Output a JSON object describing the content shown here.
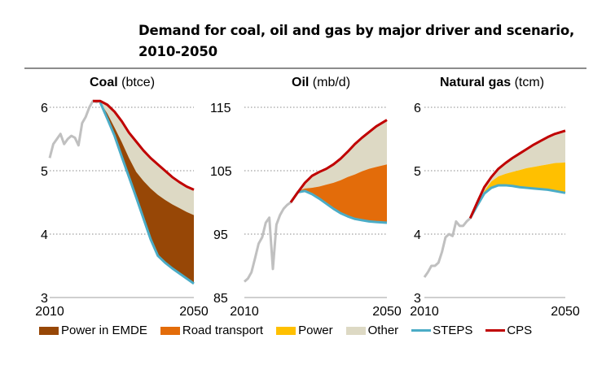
{
  "title_line1": "Demand for coal, oil and gas by major driver and scenario,",
  "title_line2": "2010-2050",
  "colors": {
    "history": "#c0c0c0",
    "power_emde": "#974706",
    "road_transport": "#e36c0a",
    "power": "#ffc000",
    "other": "#ddd9c4",
    "steps": "#4bacc6",
    "cps": "#c00000",
    "grid": "#888888",
    "axis": "#bfbfbf"
  },
  "legend": [
    {
      "label": "Power in EMDE",
      "type": "box",
      "color_key": "power_emde"
    },
    {
      "label": "Road transport",
      "type": "box",
      "color_key": "road_transport"
    },
    {
      "label": "Power",
      "type": "box",
      "color_key": "power"
    },
    {
      "label": "Other",
      "type": "box",
      "color_key": "other"
    },
    {
      "label": "STEPS",
      "type": "line",
      "color_key": "steps"
    },
    {
      "label": "CPS",
      "type": "line",
      "color_key": "cps"
    }
  ],
  "chart_data": [
    {
      "type": "area",
      "title_bold": "Coal",
      "title_unit": "(btce)",
      "xlim": [
        2010,
        2050
      ],
      "ylim": [
        3,
        6
      ],
      "yticks": [
        3,
        4,
        5,
        6
      ],
      "xtick_labels": [
        "2010",
        "2050"
      ],
      "grid": true,
      "history": {
        "x": [
          2010,
          2011,
          2012,
          2013,
          2014,
          2015,
          2016,
          2017,
          2018,
          2019,
          2020,
          2021,
          2022,
          2023,
          2024
        ],
        "y": [
          5.2,
          5.42,
          5.5,
          5.58,
          5.42,
          5.5,
          5.55,
          5.52,
          5.4,
          5.75,
          5.85,
          6.0,
          6.1,
          6.08,
          6.1
        ]
      },
      "steps": {
        "x": [
          2024,
          2026,
          2028,
          2030,
          2032,
          2034,
          2036,
          2038,
          2040,
          2042,
          2044,
          2046,
          2048,
          2050
        ],
        "y": [
          6.08,
          5.82,
          5.55,
          5.22,
          4.9,
          4.58,
          4.25,
          3.92,
          3.66,
          3.55,
          3.46,
          3.38,
          3.3,
          3.22
        ]
      },
      "cps": {
        "x": [
          2022,
          2024,
          2026,
          2028,
          2030,
          2032,
          2034,
          2036,
          2038,
          2040,
          2042,
          2044,
          2046,
          2048,
          2050
        ],
        "y": [
          6.1,
          6.1,
          6.04,
          5.93,
          5.78,
          5.6,
          5.46,
          5.32,
          5.2,
          5.1,
          5.0,
          4.9,
          4.82,
          4.75,
          4.7
        ]
      },
      "stacks": [
        {
          "name": "Power in EMDE",
          "color_key": "power_emde",
          "top": [
            6.08,
            5.9,
            5.68,
            5.45,
            5.2,
            4.98,
            4.84,
            4.72,
            4.62,
            4.54,
            4.47,
            4.41,
            4.35,
            4.3
          ]
        },
        {
          "name": "Other",
          "color_key": "other",
          "top": "cps"
        }
      ]
    },
    {
      "type": "area",
      "title_bold": "Oil",
      "title_unit": "(mb/d)",
      "xlim": [
        2010,
        2050
      ],
      "ylim": [
        85,
        115
      ],
      "yticks": [
        85,
        95,
        105,
        115
      ],
      "xtick_labels": [
        "2010",
        "2050"
      ],
      "grid": true,
      "history": {
        "x": [
          2010,
          2011,
          2012,
          2013,
          2014,
          2015,
          2016,
          2017,
          2018,
          2019,
          2020,
          2021,
          2022,
          2023
        ],
        "y": [
          87.5,
          88,
          89,
          91.2,
          93.5,
          94.5,
          96.8,
          97.6,
          89.5,
          96.5,
          98,
          99,
          99.6,
          100
        ]
      },
      "steps": {
        "x": [
          2023,
          2025,
          2027,
          2029,
          2031,
          2033,
          2035,
          2037,
          2039,
          2041,
          2043,
          2045,
          2047,
          2050
        ],
        "y": [
          100,
          101.6,
          101.8,
          101.3,
          100.6,
          99.8,
          99,
          98.3,
          97.8,
          97.4,
          97.2,
          97,
          96.9,
          96.8
        ]
      },
      "cps": {
        "x": [
          2023,
          2025,
          2027,
          2029,
          2031,
          2033,
          2035,
          2037,
          2039,
          2041,
          2043,
          2045,
          2047,
          2050
        ],
        "y": [
          100,
          101.6,
          103.1,
          104.2,
          104.8,
          105.3,
          106,
          106.9,
          108,
          109.2,
          110.2,
          111.1,
          112,
          113
        ]
      },
      "stacks": [
        {
          "name": "Road transport",
          "color_key": "road_transport",
          "top": [
            100,
            101.8,
            102.2,
            102.3,
            102.5,
            102.8,
            103.1,
            103.5,
            104,
            104.4,
            104.9,
            105.3,
            105.6,
            106
          ]
        },
        {
          "name": "Other",
          "color_key": "other",
          "top": "cps"
        }
      ]
    },
    {
      "type": "area",
      "title_bold": "Natural gas",
      "title_unit": "(tcm)",
      "xlim": [
        2010,
        2050
      ],
      "ylim": [
        3,
        6
      ],
      "yticks": [
        3,
        4,
        5,
        6
      ],
      "xtick_labels": [
        "2010",
        "2050"
      ],
      "grid": true,
      "history": {
        "x": [
          2010,
          2011,
          2012,
          2013,
          2014,
          2015,
          2016,
          2017,
          2018,
          2019,
          2020,
          2021,
          2022,
          2023
        ],
        "y": [
          3.32,
          3.4,
          3.5,
          3.5,
          3.55,
          3.72,
          3.95,
          4.0,
          3.97,
          4.2,
          4.13,
          4.13,
          4.2,
          4.25
        ]
      },
      "steps": {
        "x": [
          2023,
          2025,
          2027,
          2029,
          2031,
          2033,
          2035,
          2037,
          2039,
          2041,
          2043,
          2045,
          2047,
          2050
        ],
        "y": [
          4.25,
          4.45,
          4.64,
          4.73,
          4.77,
          4.77,
          4.76,
          4.74,
          4.73,
          4.72,
          4.71,
          4.7,
          4.68,
          4.65
        ]
      },
      "cps": {
        "x": [
          2023,
          2025,
          2027,
          2029,
          2031,
          2033,
          2035,
          2037,
          2039,
          2041,
          2043,
          2045,
          2047,
          2050
        ],
        "y": [
          4.25,
          4.5,
          4.74,
          4.9,
          5.03,
          5.12,
          5.2,
          5.27,
          5.34,
          5.41,
          5.47,
          5.53,
          5.58,
          5.63
        ]
      },
      "stacks": [
        {
          "name": "Power",
          "color_key": "power",
          "top": [
            4.25,
            4.47,
            4.68,
            4.83,
            4.91,
            4.95,
            4.98,
            5.01,
            5.04,
            5.06,
            5.08,
            5.1,
            5.12,
            5.13
          ]
        },
        {
          "name": "Other",
          "color_key": "other",
          "top": "cps"
        }
      ]
    }
  ]
}
